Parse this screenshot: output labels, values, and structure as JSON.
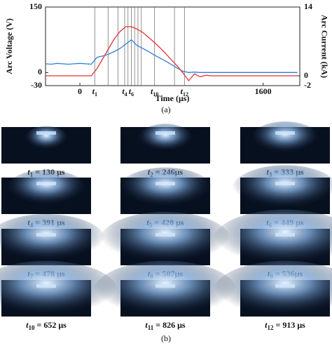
{
  "chart_data": {
    "type": "line",
    "x_label": "Time (μs)",
    "y_label": "Arc Voltage (V)",
    "y2_label": "Arc Current (kA)",
    "caption": "(a)",
    "x": [
      -300,
      -250,
      -200,
      -150,
      -100,
      -50,
      0,
      50,
      100,
      150,
      200,
      250,
      300,
      350,
      400,
      450,
      500,
      550,
      600,
      650,
      700,
      750,
      800,
      850,
      900,
      950,
      1000,
      1050,
      1100,
      1150,
      1200,
      1250,
      1300,
      1350,
      1400,
      1450,
      1500,
      1550,
      1600,
      1650,
      1700,
      1750,
      1800,
      1850,
      1900
    ],
    "series": [
      {
        "color": "#2f7fd6",
        "values": [
          20,
          19,
          21,
          20,
          19,
          20,
          21,
          20,
          19,
          35,
          38,
          42,
          48,
          55,
          65,
          75,
          62,
          55,
          48,
          40,
          33,
          26,
          18,
          10,
          3,
          0,
          1,
          0,
          0,
          0,
          0,
          0,
          0,
          0,
          0,
          0,
          0,
          0,
          0,
          0,
          0,
          0,
          0,
          0,
          0
        ]
      },
      {
        "color": "#e53238",
        "axis": "y2",
        "values": [
          0,
          0,
          0,
          0,
          0,
          0,
          0,
          0,
          0,
          1.5,
          3.5,
          5.5,
          7.5,
          9,
          10,
          10,
          9.5,
          8.8,
          7.8,
          6.8,
          5.7,
          4.5,
          3.2,
          2,
          0.6,
          -1,
          0.4,
          -0.2,
          0.1,
          0,
          0,
          0,
          0,
          0,
          0,
          0,
          0,
          0,
          0,
          0,
          0,
          0,
          0,
          0,
          0
        ]
      }
    ],
    "xlim": [
      -300,
      1920
    ],
    "xticks": [
      0,
      1600
    ],
    "ylim": [
      -30,
      150
    ],
    "yticks": [
      -30,
      0,
      150
    ],
    "y2lim": [
      -2,
      14
    ],
    "y2ticks": [
      -2,
      0,
      14
    ],
    "vlines": [
      130,
      246,
      333,
      391,
      420,
      449,
      478,
      507,
      536,
      652,
      826,
      913
    ],
    "markers": [
      {
        "x": 130,
        "text": "t",
        "sub": "1"
      },
      {
        "x": 391,
        "text": "t",
        "sub": "4"
      },
      {
        "x": 449,
        "text": "t",
        "sub": "6"
      },
      {
        "x": 652,
        "text": "t",
        "sub": "10"
      },
      {
        "x": 913,
        "text": "t",
        "sub": "12"
      }
    ]
  },
  "frames": {
    "caption": "(b)",
    "items": [
      {
        "text": "t",
        "sub": "1",
        "rest": " = 130 μs"
      },
      {
        "text": "t",
        "sub": "2",
        "rest": " = 246μs"
      },
      {
        "text": "t",
        "sub": "3",
        "rest": " = 333 μs"
      },
      {
        "text": "t",
        "sub": "4",
        "rest": " = 391 μs"
      },
      {
        "text": "t",
        "sub": "5",
        "rest": " = 420 μs"
      },
      {
        "text": "t",
        "sub": "6",
        "rest": " = 449 μs"
      },
      {
        "text": "t",
        "sub": "7",
        "rest": " = 478 μs"
      },
      {
        "text": "t",
        "sub": "8",
        "rest": " = 507μs"
      },
      {
        "text": "t",
        "sub": "9",
        "rest": " = 536μs"
      },
      {
        "text": "t",
        "sub": "10",
        "rest": " = 652 μs"
      },
      {
        "text": "t",
        "sub": "11",
        "rest": " = 826 μs"
      },
      {
        "text": "t",
        "sub": "12",
        "rest": " = 913 μs"
      }
    ]
  }
}
